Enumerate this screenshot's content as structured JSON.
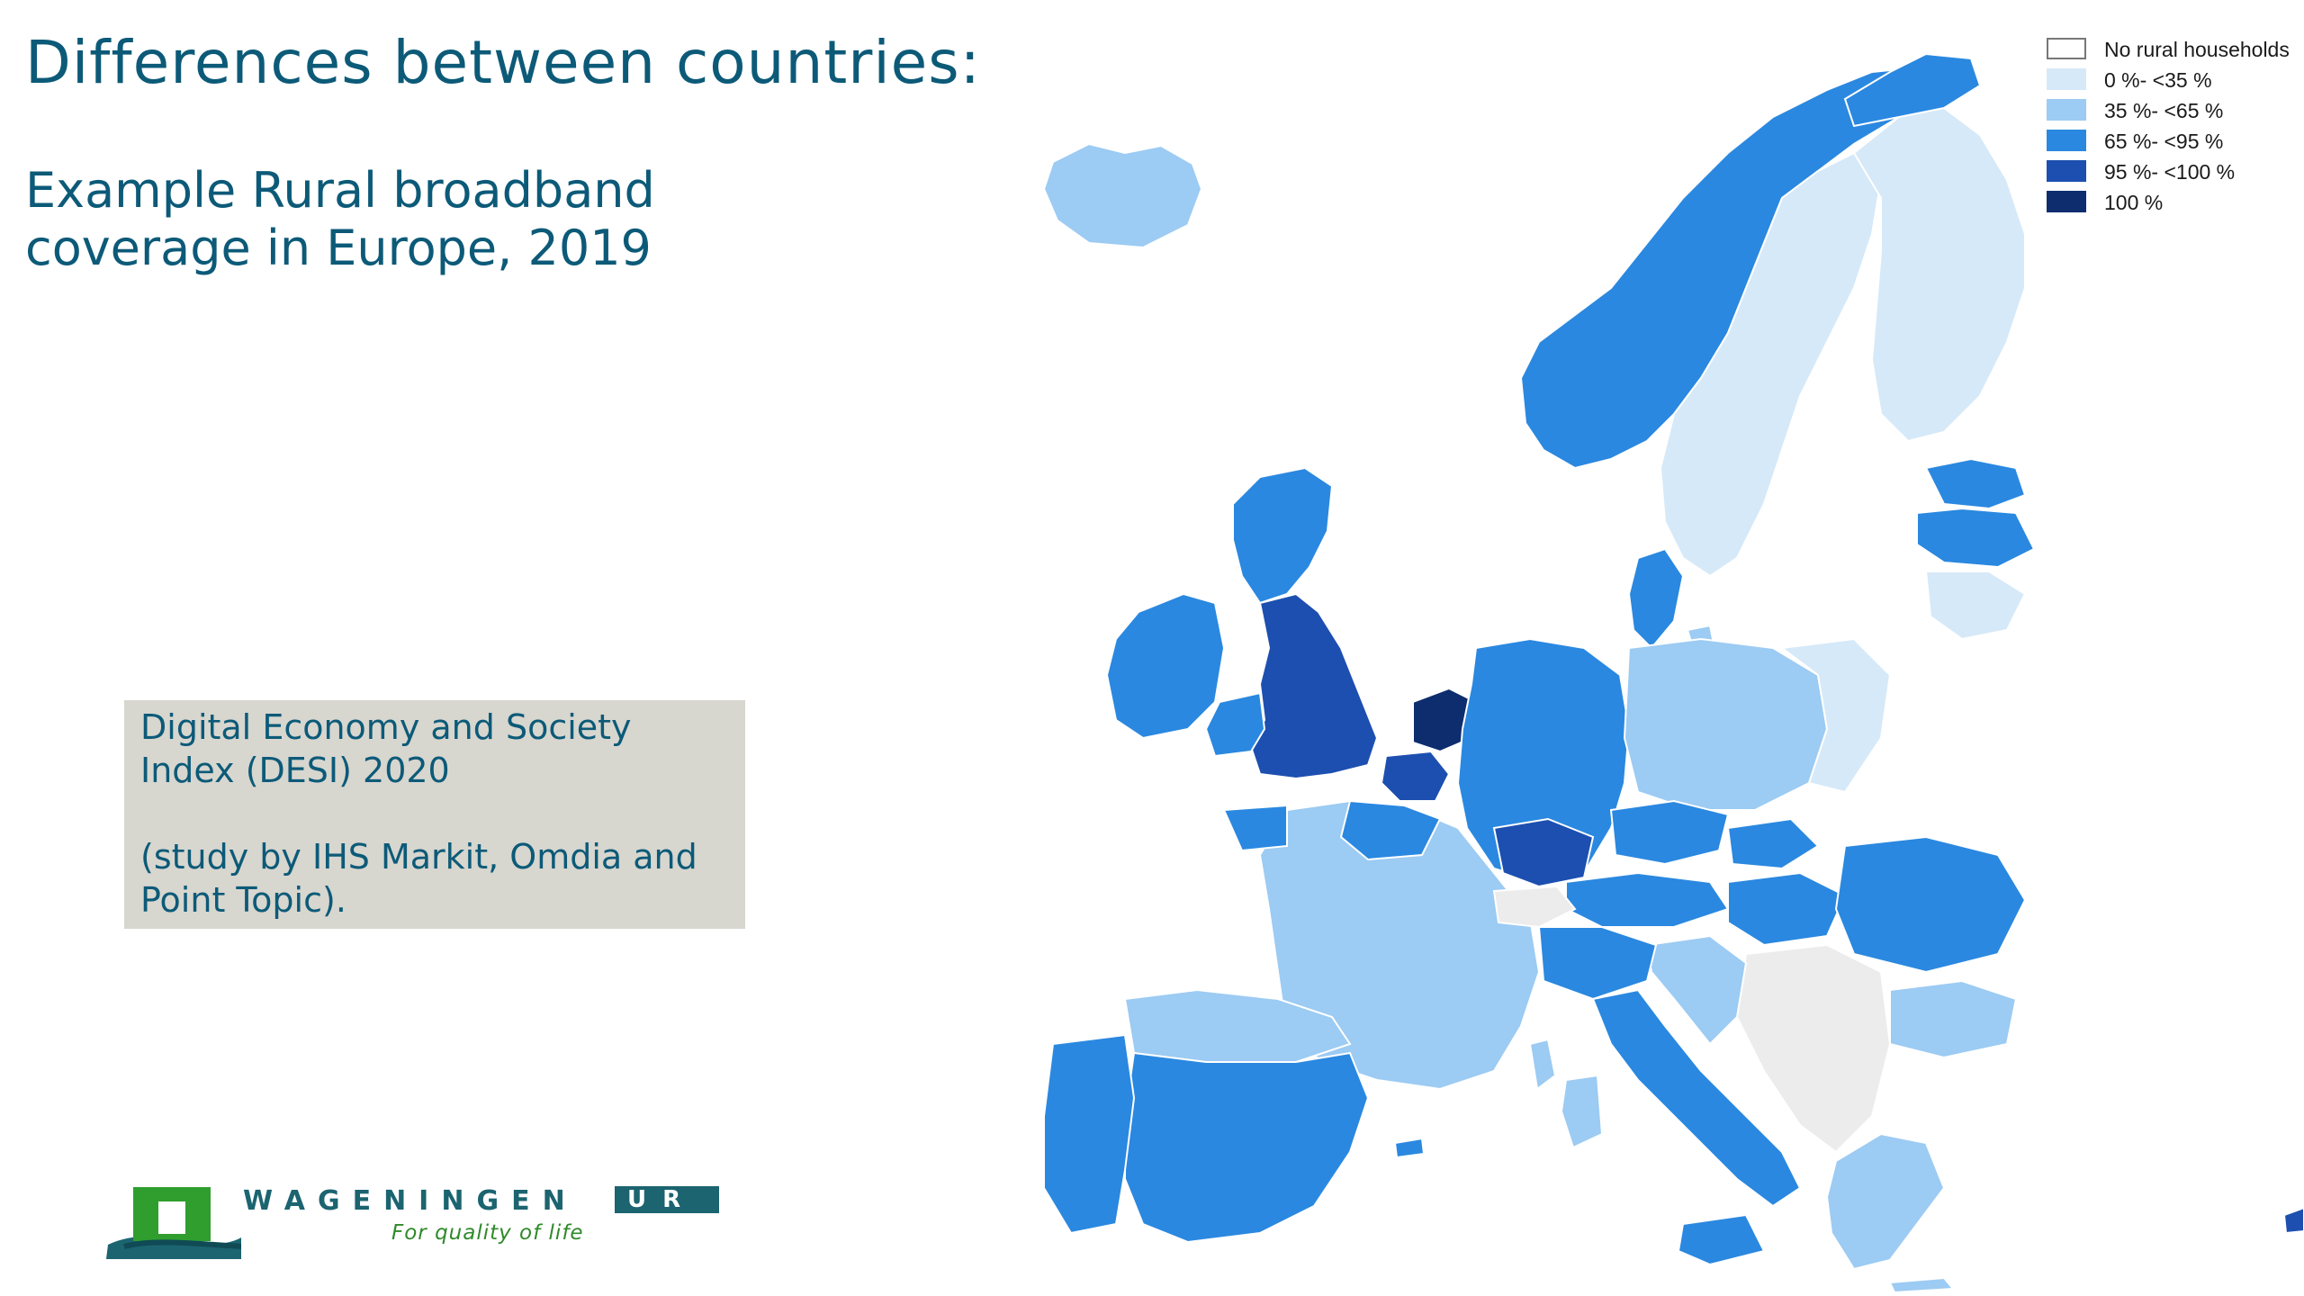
{
  "slide": {
    "title": "Differences between countries:",
    "subtitle": "Example Rural broadband\ncoverage in Europe, 2019"
  },
  "source_box": {
    "line1": "Digital Economy and Society",
    "line2": "Index (DESI) 2020",
    "line3": "(study by IHS Markit, Omdia and",
    "line4": "Point Topic)."
  },
  "logo": {
    "word": "WAGENINGEN",
    "ur": "UR",
    "tagline": "For quality of life",
    "mark_color": "#2f9e2f",
    "base_color": "#1b6470"
  },
  "legend": {
    "items": [
      {
        "label": "No rural households",
        "color": "#ffffff"
      },
      {
        "label": "0 %- <35 %",
        "color": "#d6e9f8"
      },
      {
        "label": "35 %- <65 %",
        "color": "#9ccbf3"
      },
      {
        "label": "65 %- <95 %",
        "color": "#2a88e0"
      },
      {
        "label": "95 %- <100 %",
        "color": "#1c4fb0"
      },
      {
        "label": "100 %",
        "color": "#0d2d6e"
      }
    ]
  },
  "map": {
    "no_data_color": "#ececec"
  }
}
